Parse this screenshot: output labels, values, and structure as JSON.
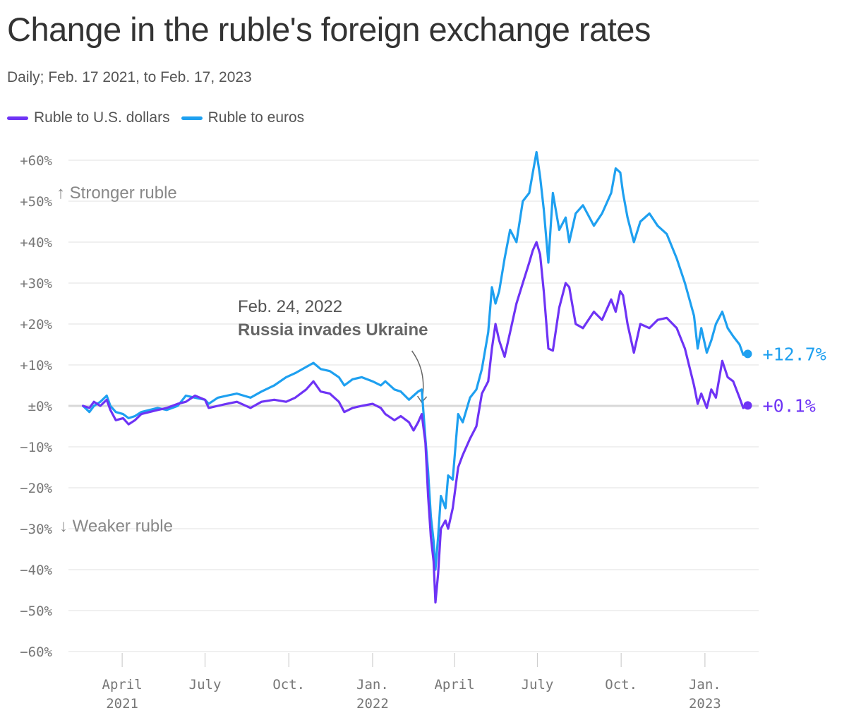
{
  "header": {
    "title": "Change in the ruble's foreign exchange rates",
    "subtitle": "Daily; Feb. 17 2021, to Feb. 17, 2023"
  },
  "legend": [
    {
      "label": "Ruble to U.S. dollars",
      "color": "#6e33f5"
    },
    {
      "label": "Ruble to euros",
      "color": "#1ea0f0"
    }
  ],
  "chart_data": {
    "type": "line",
    "title": "Change in the ruble's foreign exchange rates",
    "subtitle": "Daily; Feb. 17 2021, to Feb. 17, 2023",
    "xlabel": "",
    "ylabel": "",
    "ylim": [
      -60,
      60
    ],
    "xlim": [
      "2021-02-01",
      "2023-03-01"
    ],
    "y_ticks": [
      60,
      50,
      40,
      30,
      20,
      10,
      0,
      -10,
      -20,
      -30,
      -40,
      -50,
      -60
    ],
    "y_tick_labels": [
      "+60%",
      "+50%",
      "+40%",
      "+30%",
      "+20%",
      "+10%",
      "±0%",
      "−10%",
      "−20%",
      "−30%",
      "−40%",
      "−50%",
      "−60%"
    ],
    "x_ticks": [
      {
        "date": "2021-04-01",
        "line1": "April",
        "line2": "2021"
      },
      {
        "date": "2021-07-01",
        "line1": "July",
        "line2": ""
      },
      {
        "date": "2021-10-01",
        "line1": "Oct.",
        "line2": ""
      },
      {
        "date": "2022-01-01",
        "line1": "Jan.",
        "line2": "2022"
      },
      {
        "date": "2022-04-01",
        "line1": "April",
        "line2": ""
      },
      {
        "date": "2022-07-01",
        "line1": "July",
        "line2": ""
      },
      {
        "date": "2022-10-01",
        "line1": "Oct.",
        "line2": ""
      },
      {
        "date": "2023-01-01",
        "line1": "Jan.",
        "line2": "2023"
      }
    ],
    "grid": true,
    "legend_position": "top-left",
    "series": [
      {
        "name": "Ruble to U.S. dollars",
        "color": "#6e33f5",
        "end_label": "+0.1%",
        "points": [
          [
            "2021-02-17",
            0
          ],
          [
            "2021-02-24",
            -0.5
          ],
          [
            "2021-03-01",
            1
          ],
          [
            "2021-03-08",
            0
          ],
          [
            "2021-03-15",
            1.5
          ],
          [
            "2021-03-19",
            -1
          ],
          [
            "2021-03-25",
            -3.5
          ],
          [
            "2021-04-02",
            -3
          ],
          [
            "2021-04-08",
            -4.5
          ],
          [
            "2021-04-15",
            -3.5
          ],
          [
            "2021-04-22",
            -2
          ],
          [
            "2021-05-01",
            -1.5
          ],
          [
            "2021-05-10",
            -1
          ],
          [
            "2021-05-20",
            -0.5
          ],
          [
            "2021-06-01",
            0.5
          ],
          [
            "2021-06-10",
            1
          ],
          [
            "2021-06-20",
            2.5
          ],
          [
            "2021-07-01",
            1.5
          ],
          [
            "2021-07-05",
            -0.5
          ],
          [
            "2021-07-15",
            0
          ],
          [
            "2021-07-25",
            0.5
          ],
          [
            "2021-08-05",
            1
          ],
          [
            "2021-08-20",
            -0.5
          ],
          [
            "2021-09-01",
            1
          ],
          [
            "2021-09-15",
            1.5
          ],
          [
            "2021-09-28",
            1
          ],
          [
            "2021-10-08",
            2
          ],
          [
            "2021-10-20",
            4
          ],
          [
            "2021-10-28",
            6
          ],
          [
            "2021-11-05",
            3.5
          ],
          [
            "2021-11-15",
            3
          ],
          [
            "2021-11-25",
            1
          ],
          [
            "2021-12-01",
            -1.5
          ],
          [
            "2021-12-10",
            -0.5
          ],
          [
            "2021-12-20",
            0
          ],
          [
            "2022-01-01",
            0.5
          ],
          [
            "2022-01-10",
            -0.5
          ],
          [
            "2022-01-15",
            -2
          ],
          [
            "2022-01-25",
            -3.5
          ],
          [
            "2022-02-01",
            -2.5
          ],
          [
            "2022-02-10",
            -4
          ],
          [
            "2022-02-15",
            -6
          ],
          [
            "2022-02-20",
            -4
          ],
          [
            "2022-02-24",
            -2
          ],
          [
            "2022-02-28",
            -9
          ],
          [
            "2022-03-03",
            -22
          ],
          [
            "2022-03-06",
            -32
          ],
          [
            "2022-03-09",
            -38
          ],
          [
            "2022-03-11",
            -48
          ],
          [
            "2022-03-14",
            -41
          ],
          [
            "2022-03-17",
            -30
          ],
          [
            "2022-03-22",
            -28
          ],
          [
            "2022-03-25",
            -30
          ],
          [
            "2022-03-30",
            -25
          ],
          [
            "2022-04-05",
            -15
          ],
          [
            "2022-04-10",
            -12
          ],
          [
            "2022-04-18",
            -8
          ],
          [
            "2022-04-25",
            -5
          ],
          [
            "2022-05-01",
            3
          ],
          [
            "2022-05-08",
            6
          ],
          [
            "2022-05-12",
            14
          ],
          [
            "2022-05-16",
            20
          ],
          [
            "2022-05-20",
            16
          ],
          [
            "2022-05-26",
            12
          ],
          [
            "2022-06-01",
            18
          ],
          [
            "2022-06-08",
            25
          ],
          [
            "2022-06-15",
            30
          ],
          [
            "2022-06-22",
            35
          ],
          [
            "2022-06-26",
            38
          ],
          [
            "2022-06-30",
            40
          ],
          [
            "2022-07-04",
            37
          ],
          [
            "2022-07-08",
            28
          ],
          [
            "2022-07-13",
            14
          ],
          [
            "2022-07-18",
            13.5
          ],
          [
            "2022-07-25",
            24
          ],
          [
            "2022-08-01",
            30
          ],
          [
            "2022-08-05",
            29
          ],
          [
            "2022-08-12",
            20
          ],
          [
            "2022-08-20",
            19
          ],
          [
            "2022-09-01",
            23
          ],
          [
            "2022-09-10",
            21
          ],
          [
            "2022-09-20",
            26
          ],
          [
            "2022-09-25",
            23
          ],
          [
            "2022-09-30",
            28
          ],
          [
            "2022-10-03",
            27
          ],
          [
            "2022-10-08",
            20
          ],
          [
            "2022-10-15",
            13
          ],
          [
            "2022-10-22",
            20
          ],
          [
            "2022-11-01",
            19
          ],
          [
            "2022-11-10",
            21
          ],
          [
            "2022-11-20",
            21.5
          ],
          [
            "2022-12-01",
            19
          ],
          [
            "2022-12-10",
            14
          ],
          [
            "2022-12-20",
            5
          ],
          [
            "2022-12-24",
            0.5
          ],
          [
            "2022-12-28",
            3
          ],
          [
            "2023-01-03",
            -0.5
          ],
          [
            "2023-01-08",
            4
          ],
          [
            "2023-01-13",
            2
          ],
          [
            "2023-01-20",
            11
          ],
          [
            "2023-01-26",
            7
          ],
          [
            "2023-02-01",
            6
          ],
          [
            "2023-02-08",
            2
          ],
          [
            "2023-02-12",
            -0.5
          ],
          [
            "2023-02-17",
            0.1
          ]
        ]
      },
      {
        "name": "Ruble to euros",
        "color": "#1ea0f0",
        "end_label": "+12.7%",
        "points": [
          [
            "2021-02-17",
            0
          ],
          [
            "2021-02-24",
            -1.5
          ],
          [
            "2021-03-01",
            0
          ],
          [
            "2021-03-08",
            1
          ],
          [
            "2021-03-15",
            2.5
          ],
          [
            "2021-03-19",
            0
          ],
          [
            "2021-03-25",
            -1.5
          ],
          [
            "2021-04-02",
            -2
          ],
          [
            "2021-04-08",
            -3
          ],
          [
            "2021-04-15",
            -2.5
          ],
          [
            "2021-04-22",
            -1.5
          ],
          [
            "2021-05-01",
            -1
          ],
          [
            "2021-05-10",
            -0.5
          ],
          [
            "2021-05-20",
            -1
          ],
          [
            "2021-06-01",
            0
          ],
          [
            "2021-06-10",
            2.5
          ],
          [
            "2021-06-20",
            2
          ],
          [
            "2021-07-01",
            1.5
          ],
          [
            "2021-07-05",
            0.5
          ],
          [
            "2021-07-15",
            2
          ],
          [
            "2021-07-25",
            2.5
          ],
          [
            "2021-08-05",
            3
          ],
          [
            "2021-08-20",
            2
          ],
          [
            "2021-09-01",
            3.5
          ],
          [
            "2021-09-15",
            5
          ],
          [
            "2021-09-28",
            7
          ],
          [
            "2021-10-08",
            8
          ],
          [
            "2021-10-20",
            9.5
          ],
          [
            "2021-10-28",
            10.5
          ],
          [
            "2021-11-05",
            9
          ],
          [
            "2021-11-15",
            8.5
          ],
          [
            "2021-11-25",
            7
          ],
          [
            "2021-12-01",
            5
          ],
          [
            "2021-12-10",
            6.5
          ],
          [
            "2021-12-20",
            7
          ],
          [
            "2022-01-01",
            6
          ],
          [
            "2022-01-10",
            5
          ],
          [
            "2022-01-15",
            6
          ],
          [
            "2022-01-25",
            4
          ],
          [
            "2022-02-01",
            3.5
          ],
          [
            "2022-02-10",
            1.5
          ],
          [
            "2022-02-15",
            2.5
          ],
          [
            "2022-02-20",
            3.5
          ],
          [
            "2022-02-24",
            4
          ],
          [
            "2022-02-28",
            -8
          ],
          [
            "2022-03-03",
            -16
          ],
          [
            "2022-03-06",
            -27
          ],
          [
            "2022-03-09",
            -33
          ],
          [
            "2022-03-11",
            -40
          ],
          [
            "2022-03-14",
            -32
          ],
          [
            "2022-03-17",
            -22
          ],
          [
            "2022-03-22",
            -25
          ],
          [
            "2022-03-25",
            -17
          ],
          [
            "2022-03-30",
            -18
          ],
          [
            "2022-04-05",
            -2
          ],
          [
            "2022-04-10",
            -4
          ],
          [
            "2022-04-18",
            2
          ],
          [
            "2022-04-25",
            4
          ],
          [
            "2022-05-01",
            9
          ],
          [
            "2022-05-08",
            18
          ],
          [
            "2022-05-12",
            29
          ],
          [
            "2022-05-16",
            25
          ],
          [
            "2022-05-20",
            28
          ],
          [
            "2022-05-26",
            36
          ],
          [
            "2022-06-01",
            43
          ],
          [
            "2022-06-08",
            40
          ],
          [
            "2022-06-15",
            50
          ],
          [
            "2022-06-22",
            52
          ],
          [
            "2022-06-26",
            57
          ],
          [
            "2022-06-30",
            62
          ],
          [
            "2022-07-04",
            56
          ],
          [
            "2022-07-08",
            48
          ],
          [
            "2022-07-13",
            35
          ],
          [
            "2022-07-18",
            52
          ],
          [
            "2022-07-25",
            43
          ],
          [
            "2022-08-01",
            46
          ],
          [
            "2022-08-05",
            40
          ],
          [
            "2022-08-12",
            47
          ],
          [
            "2022-08-20",
            49
          ],
          [
            "2022-09-01",
            44
          ],
          [
            "2022-09-10",
            47
          ],
          [
            "2022-09-20",
            52
          ],
          [
            "2022-09-25",
            58
          ],
          [
            "2022-09-30",
            57
          ],
          [
            "2022-10-03",
            52
          ],
          [
            "2022-10-08",
            46
          ],
          [
            "2022-10-15",
            40
          ],
          [
            "2022-10-22",
            45
          ],
          [
            "2022-11-01",
            47
          ],
          [
            "2022-11-10",
            44
          ],
          [
            "2022-11-20",
            42
          ],
          [
            "2022-12-01",
            36
          ],
          [
            "2022-12-10",
            30
          ],
          [
            "2022-12-20",
            22
          ],
          [
            "2022-12-24",
            14
          ],
          [
            "2022-12-28",
            19
          ],
          [
            "2023-01-03",
            13
          ],
          [
            "2023-01-08",
            16
          ],
          [
            "2023-01-13",
            20
          ],
          [
            "2023-01-20",
            23
          ],
          [
            "2023-01-26",
            19
          ],
          [
            "2023-02-01",
            17
          ],
          [
            "2023-02-08",
            15
          ],
          [
            "2023-02-12",
            12.5
          ],
          [
            "2023-02-17",
            12.7
          ]
        ]
      }
    ],
    "annotations": {
      "stronger": "↑ Stronger ruble",
      "weaker": "↓ Weaker ruble",
      "event_date": "Feb. 24, 2022",
      "event_label": "Russia invades Ukraine",
      "event_x": "2022-02-24",
      "event_y": 0
    }
  }
}
